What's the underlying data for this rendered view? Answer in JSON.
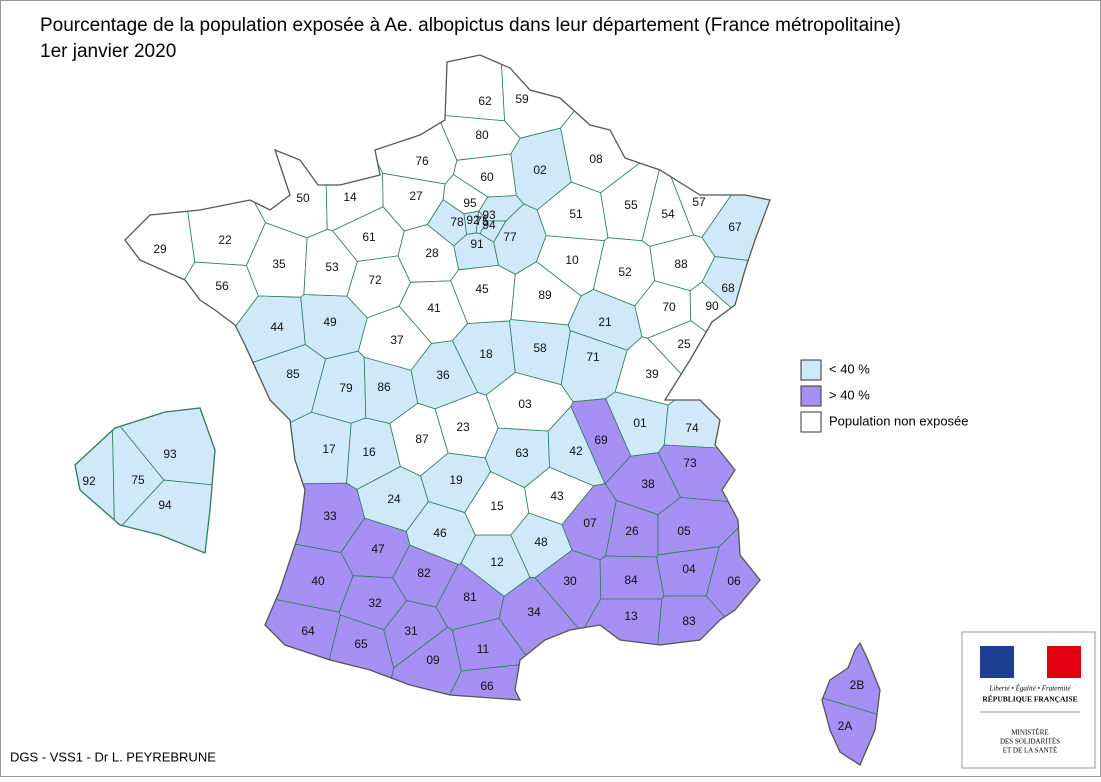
{
  "title": "Pourcentage de la population exposée à Ae. albopictus dans leur département (France métropolitaine)",
  "subtitle": "1er janvier 2020",
  "legend": [
    {
      "label": "< 40 %",
      "color": "#cfe9f9",
      "departments": [
        "02",
        "67",
        "68",
        "78",
        "91",
        "77",
        "92",
        "93",
        "75",
        "94",
        "44",
        "49",
        "85",
        "79",
        "86",
        "36",
        "18",
        "58",
        "21",
        "71",
        "17",
        "16",
        "24",
        "19",
        "63",
        "42",
        "01",
        "74",
        "12",
        "48",
        "46"
      ],
      "inset_departments": [
        "93",
        "92",
        "75",
        "94"
      ]
    },
    {
      "label": "> 40 %",
      "color": "#a690f3",
      "departments": [
        "69",
        "73",
        "38",
        "33",
        "47",
        "07",
        "26",
        "05",
        "40",
        "82",
        "04",
        "06",
        "32",
        "81",
        "30",
        "84",
        "13",
        "83",
        "64",
        "65",
        "31",
        "34",
        "09",
        "11",
        "66",
        "2B",
        "2A"
      ]
    },
    {
      "label": "Population non exposée",
      "color": "#ffffff",
      "departments": [
        "62",
        "59",
        "80",
        "76",
        "60",
        "08",
        "50",
        "14",
        "27",
        "95",
        "29",
        "22",
        "35",
        "61",
        "53",
        "72",
        "28",
        "45",
        "41",
        "89",
        "10",
        "51",
        "55",
        "54",
        "57",
        "52",
        "88",
        "70",
        "90",
        "25",
        "39",
        "37",
        "87",
        "23",
        "03",
        "15",
        "43",
        "56"
      ]
    }
  ],
  "credit": "DGS - VSS1 - Dr L. PEYREBRUNE",
  "logo": {
    "motto": "Liberté • Égalité • Fraternité",
    "republic": "RÉPUBLIQUE FRANÇAISE",
    "ministry": [
      "MINISTÈRE",
      "DES SOLIDARITÉS",
      "ET DE LA SANTÉ"
    ]
  }
}
